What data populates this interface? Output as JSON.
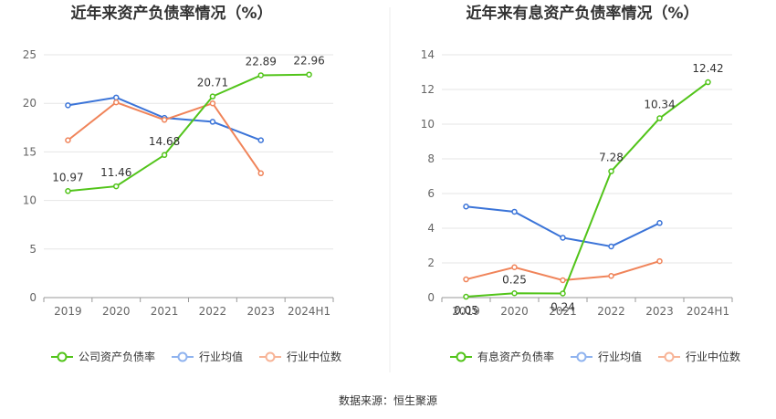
{
  "source": "数据来源：恒生聚源",
  "colors": {
    "company": "#52c41a",
    "avg": "#3b74d8",
    "median": "#f0845a",
    "legend_avg": "#8fb3ef",
    "legend_median": "#f7b497",
    "grid": "#e6e6e6",
    "axis": "#999999"
  },
  "chart_data": [
    {
      "type": "line",
      "title": "近年来资产负债率情况（%）",
      "categories": [
        "2019",
        "2020",
        "2021",
        "2022",
        "2023",
        "2024H1"
      ],
      "ylim": [
        0,
        25
      ],
      "yticks": [
        "0",
        "5",
        "10",
        "15",
        "20",
        "25"
      ],
      "grid": true,
      "legend_position": "bottom",
      "series": [
        {
          "name": "公司资产负债率",
          "values": [
            10.97,
            11.46,
            14.68,
            20.71,
            22.89,
            22.96
          ],
          "labels": [
            "10.97",
            "11.46",
            "14.68",
            "20.71",
            "22.89",
            "22.96"
          ]
        },
        {
          "name": "行业均值",
          "values": [
            19.8,
            20.6,
            18.5,
            18.1,
            16.2,
            null
          ]
        },
        {
          "name": "行业中位数",
          "values": [
            16.2,
            20.1,
            18.3,
            20.0,
            12.8,
            null
          ]
        }
      ]
    },
    {
      "type": "line",
      "title": "近年来有息资产负债率情况（%）",
      "categories": [
        "2019",
        "2020",
        "2021",
        "2022",
        "2023",
        "2024H1"
      ],
      "ylim": [
        0,
        14
      ],
      "yticks": [
        "0",
        "2",
        "4",
        "6",
        "8",
        "10",
        "12",
        "14"
      ],
      "grid": true,
      "legend_position": "bottom",
      "series": [
        {
          "name": "有息资产负债率",
          "values": [
            0.05,
            0.25,
            0.24,
            7.28,
            10.34,
            12.42
          ],
          "labels": [
            "0.05",
            "0.25",
            "0.24",
            "7.28",
            "10.34",
            "12.42"
          ]
        },
        {
          "name": "行业均值",
          "values": [
            5.25,
            4.95,
            3.45,
            2.95,
            4.3,
            null
          ]
        },
        {
          "name": "行业中位数",
          "values": [
            1.05,
            1.75,
            1.0,
            1.25,
            2.1,
            null
          ]
        }
      ]
    }
  ]
}
